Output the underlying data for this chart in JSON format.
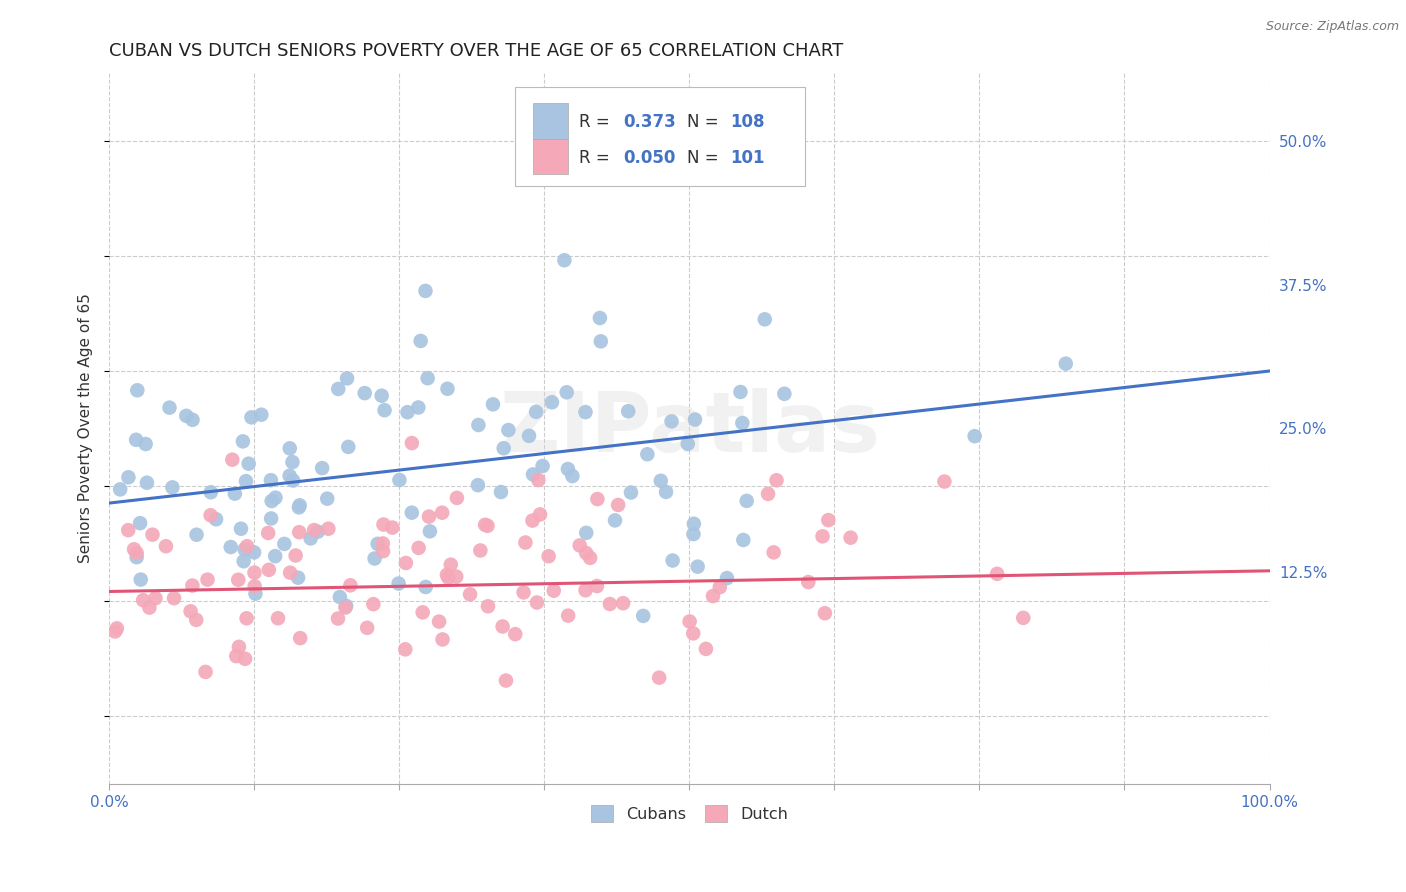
{
  "title": "CUBAN VS DUTCH SENIORS POVERTY OVER THE AGE OF 65 CORRELATION CHART",
  "source": "Source: ZipAtlas.com",
  "ylabel": "Seniors Poverty Over the Age of 65",
  "background_color": "#ffffff",
  "grid_color": "#cccccc",
  "cuban_color": "#a8c4e0",
  "dutch_color": "#f4a8b8",
  "cuban_line_color": "#4472c4",
  "dutch_line_color": "#e05575",
  "cuban_R": 0.373,
  "cuban_N": 108,
  "dutch_R": 0.05,
  "dutch_N": 101,
  "cuban_intercept": 0.185,
  "cuban_slope": 0.115,
  "dutch_intercept": 0.108,
  "dutch_slope": 0.018,
  "xlim": [
    0,
    1
  ],
  "ylim": [
    -0.06,
    0.56
  ],
  "yticks": [
    0.125,
    0.25,
    0.375,
    0.5
  ],
  "yticklabels": [
    "12.5%",
    "25.0%",
    "37.5%",
    "50.0%"
  ],
  "watermark": "ZIPatlas",
  "title_fontsize": 13,
  "axis_fontsize": 11,
  "tick_fontsize": 11,
  "source_fontsize": 9
}
